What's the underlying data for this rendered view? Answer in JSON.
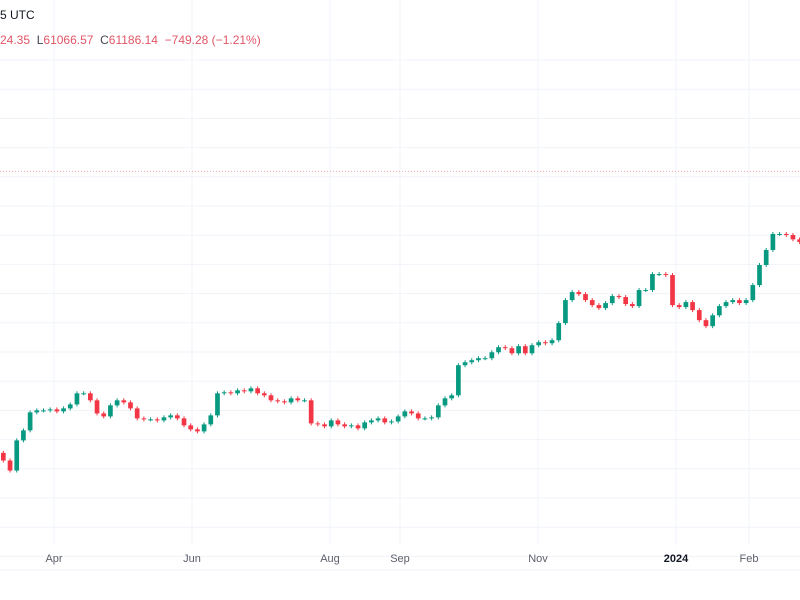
{
  "header": {
    "title_fragment": "5 UTC",
    "high_fragment": "24.35",
    "low_label": "L",
    "low_value": "61066.57",
    "close_label": "C",
    "close_value": "61186.14",
    "change": "−749.28 (−1.21%)"
  },
  "colors": {
    "up": "#089981",
    "down": "#f23645",
    "grid": "#f0f3fa",
    "price_line": "#f7a6ad",
    "header_value": "#e05666"
  },
  "chart_data": {
    "type": "candlestick",
    "title": "",
    "y_scale": "log",
    "ylim": [
      15000,
      188000
    ],
    "grid": true,
    "x_tick_labels": [
      "Apr",
      "Jun",
      "Aug",
      "Sep",
      "Nov",
      "2024",
      "Feb"
    ],
    "bold_tick": "2024",
    "first_open": 23000,
    "price_line_value": 84900,
    "closes": [
      22200,
      21190,
      24370,
      25530,
      27750,
      28010,
      28010,
      28140,
      27880,
      28270,
      28800,
      30320,
      30320,
      29350,
      27620,
      27240,
      28670,
      29350,
      29070,
      28270,
      26990,
      26870,
      26870,
      26740,
      27120,
      27370,
      26990,
      26130,
      25650,
      25410,
      26250,
      27370,
      30320,
      30460,
      30320,
      30740,
      30600,
      31030,
      30320,
      30040,
      29350,
      29210,
      29070,
      29620,
      29350,
      29350,
      26370,
      26250,
      26010,
      26740,
      26250,
      26010,
      26130,
      25770,
      26490,
      26740,
      26990,
      26490,
      26610,
      27240,
      27880,
      27620,
      26990,
      26990,
      27120,
      28670,
      29620,
      30040,
      34540,
      35020,
      35350,
      35680,
      35680,
      36680,
      37550,
      37380,
      36510,
      37730,
      36510,
      37900,
      38430,
      38250,
      38790,
      41990,
      46720,
      48490,
      48040,
      46720,
      45650,
      45020,
      46080,
      47600,
      47380,
      45870,
      45440,
      48950,
      48950,
      52720,
      52720,
      52480,
      45650,
      45230,
      46290,
      44600,
      42570,
      41400,
      43540,
      45440,
      46290,
      46720,
      46080,
      46720,
      50090,
      54980,
      58950,
      63500,
      63500,
      63190,
      61935,
      61186.14
    ]
  }
}
